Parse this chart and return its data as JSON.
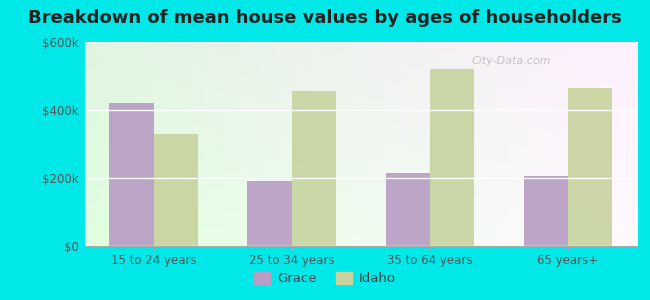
{
  "title": "Breakdown of mean house values by ages of householders",
  "categories": [
    "15 to 24 years",
    "25 to 34 years",
    "35 to 64 years",
    "65 years+"
  ],
  "grace_values": [
    420000,
    190000,
    215000,
    205000
  ],
  "idaho_values": [
    330000,
    455000,
    520000,
    465000
  ],
  "grace_color": "#b89ec4",
  "idaho_color": "#c8d4a0",
  "outer_background": "#00e8e8",
  "ylim": [
    0,
    600000
  ],
  "yticks": [
    0,
    200000,
    400000,
    600000
  ],
  "ytick_labels": [
    "$0",
    "$200k",
    "$400k",
    "$600k"
  ],
  "bar_width": 0.32,
  "title_fontsize": 13,
  "legend_labels": [
    "Grace",
    "Idaho"
  ],
  "watermark": "City-Data.com"
}
